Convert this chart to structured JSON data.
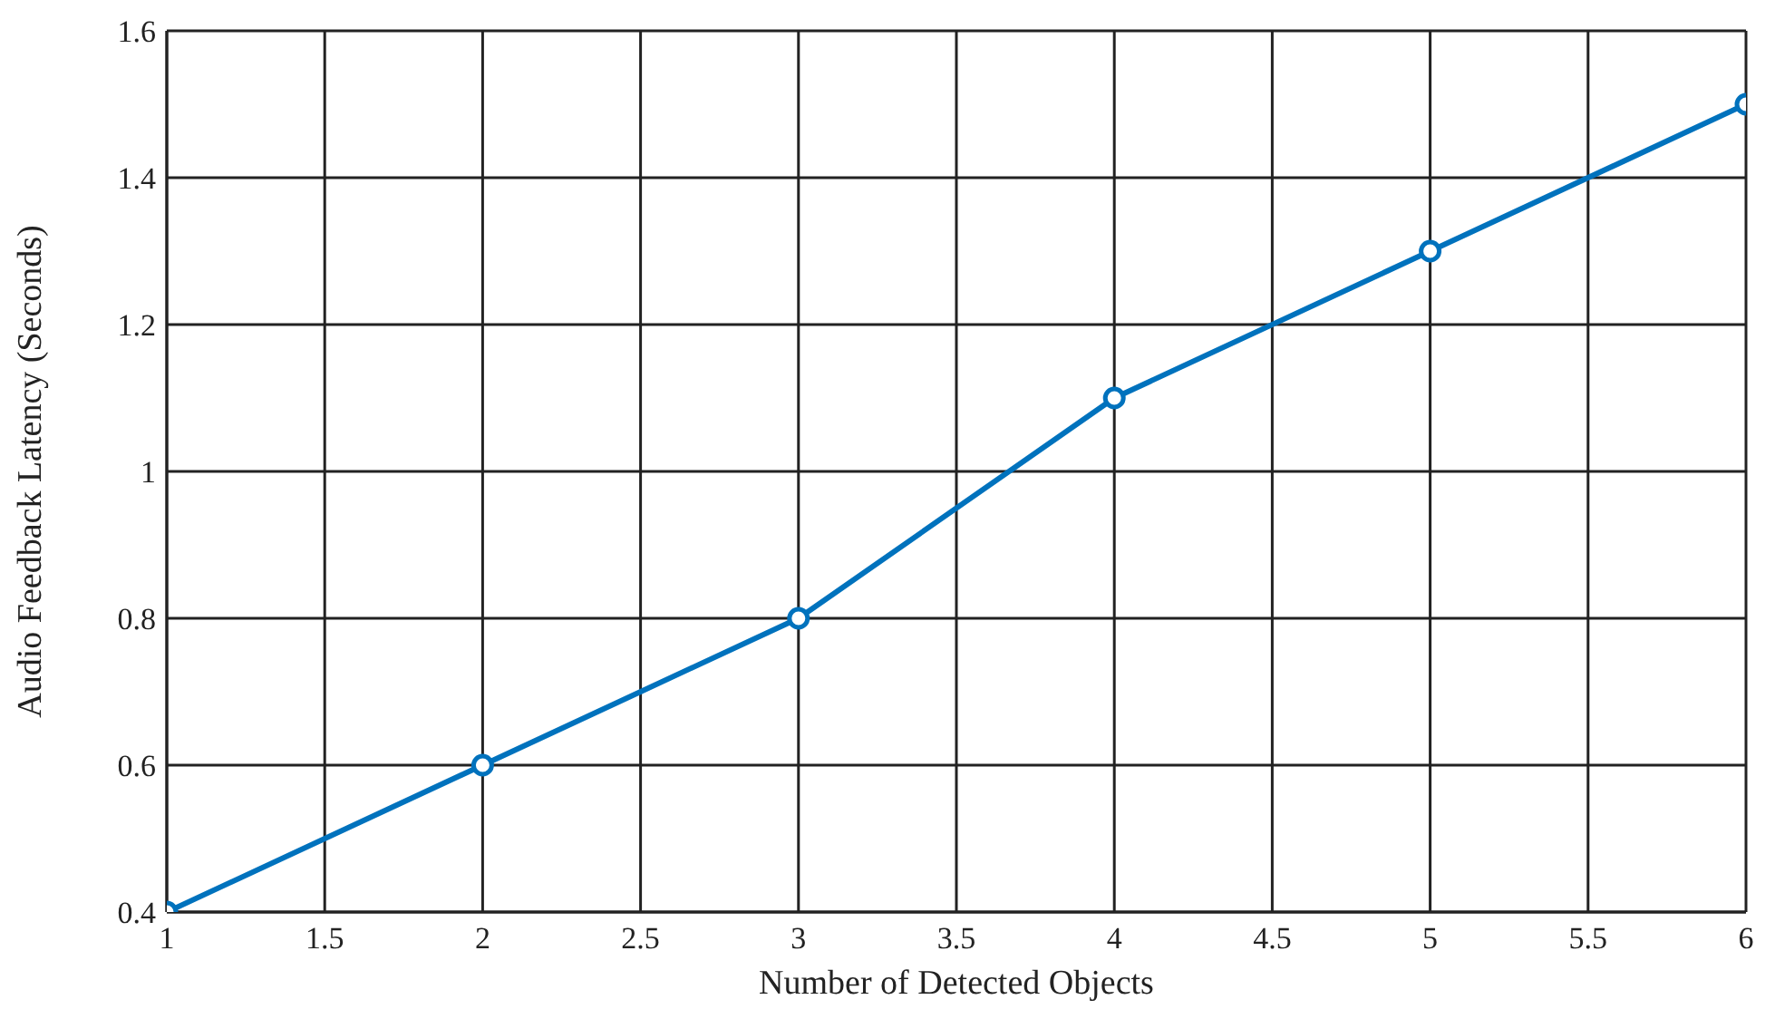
{
  "chart_data": {
    "type": "line",
    "xlabel": "Number of Detected Objects",
    "ylabel": "Audio Feedback Latency (Seconds)",
    "x": [
      1,
      2,
      3,
      4,
      5,
      6
    ],
    "series": [
      {
        "color": "#0072bd",
        "values": [
          0.4,
          0.6,
          0.8,
          1.1,
          1.3,
          1.5
        ]
      }
    ],
    "xlim": [
      1,
      6
    ],
    "xticks": [
      1,
      1.5,
      2,
      2.5,
      3,
      3.5,
      4,
      4.5,
      5,
      5.5,
      6
    ],
    "ylim": [
      0.4,
      1.6
    ],
    "yticks": [
      0.4,
      0.6,
      0.8,
      1,
      1.2,
      1.4,
      1.6
    ],
    "grid": true,
    "marker": "circle",
    "line_style": "solid"
  }
}
